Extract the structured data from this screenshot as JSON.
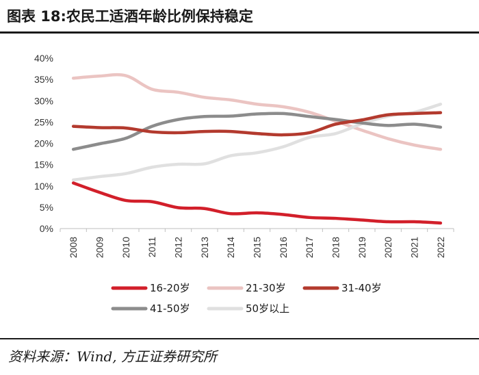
{
  "title": "图表 18:农民工适酒年龄比例保持稳定",
  "source": "资料来源：Wind, 方正证券研究所",
  "chart_data": {
    "type": "line",
    "x": [
      "2008",
      "2009",
      "2010",
      "2011",
      "2012",
      "2013",
      "2014",
      "2015",
      "2016",
      "2017",
      "2018",
      "2019",
      "2020",
      "2021",
      "2022"
    ],
    "ylim": [
      0,
      40
    ],
    "yticks": [
      "0%",
      "5%",
      "10%",
      "15%",
      "20%",
      "25%",
      "30%",
      "35%",
      "40%"
    ],
    "grid": false,
    "legend_position": "bottom",
    "series": [
      {
        "name": "16-20岁",
        "color": "#d21f2a",
        "values": [
          10.7,
          8.5,
          6.6,
          6.3,
          4.9,
          4.7,
          3.5,
          3.7,
          3.3,
          2.6,
          2.4,
          2.0,
          1.6,
          1.6,
          1.3
        ]
      },
      {
        "name": "21-30岁",
        "color": "#ebc4c2",
        "values": [
          35.3,
          35.8,
          35.9,
          32.7,
          32.0,
          30.8,
          30.2,
          29.2,
          28.6,
          27.3,
          25.2,
          23.1,
          21.1,
          19.6,
          18.6
        ]
      },
      {
        "name": "31-40岁",
        "color": "#b33a2e",
        "values": [
          24.0,
          23.7,
          23.6,
          22.7,
          22.5,
          22.8,
          22.8,
          22.3,
          22.0,
          22.5,
          24.5,
          25.5,
          26.7,
          27.0,
          27.2
        ]
      },
      {
        "name": "41-50岁",
        "color": "#8c8c8c",
        "values": [
          18.6,
          19.9,
          21.2,
          24.0,
          25.6,
          26.3,
          26.4,
          26.9,
          27.0,
          26.3,
          25.6,
          24.8,
          24.2,
          24.5,
          23.8
        ]
      },
      {
        "name": "50岁以上",
        "color": "#e0e0e0",
        "values": [
          11.4,
          12.2,
          12.9,
          14.4,
          15.1,
          15.2,
          17.1,
          17.8,
          19.2,
          21.4,
          22.3,
          24.6,
          26.4,
          27.3,
          29.2
        ]
      }
    ]
  }
}
